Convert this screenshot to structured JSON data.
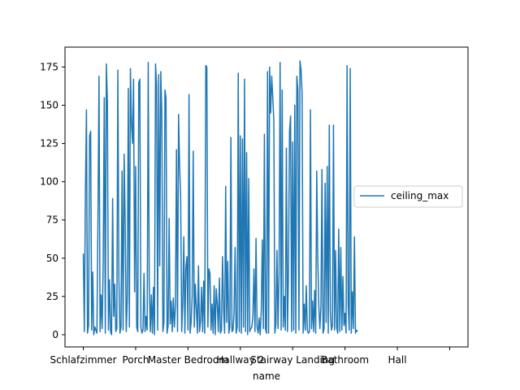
{
  "chart_data": {
    "type": "line",
    "xlabel": "name",
    "ylabel": "",
    "ylim": [
      -8,
      188
    ],
    "yticks": [
      0,
      25,
      50,
      75,
      100,
      125,
      150,
      175
    ],
    "xticks": [
      {
        "label": "Schlafzimmer",
        "pos": 0
      },
      {
        "label": "Porch",
        "pos": 50
      },
      {
        "label": "Master Bedroom",
        "pos": 100
      },
      {
        "label": "Hallway 2",
        "pos": 150
      },
      {
        "label": "Stairway Landing",
        "pos": 200
      },
      {
        "label": "Bathroom",
        "pos": 250
      },
      {
        "label": "Hall",
        "pos": 300
      },
      {
        "label": "",
        "pos": 350
      }
    ],
    "xlim": [
      -17.5,
      367.5
    ],
    "legend": {
      "location": "center right"
    },
    "series": [
      {
        "name": "ceiling_max",
        "color": "#1f77b4",
        "values": [
          53,
          2,
          93,
          147,
          1,
          6,
          130,
          133,
          3,
          41,
          0,
          5,
          3,
          1,
          77,
          169,
          2,
          26,
          4,
          48,
          155,
          1,
          177,
          152,
          3,
          36,
          2,
          0,
          89,
          12,
          33,
          2,
          4,
          173,
          36,
          1,
          5,
          107,
          3,
          118,
          72,
          2,
          23,
          161,
          5,
          174,
          138,
          125,
          167,
          28,
          110,
          5,
          2,
          165,
          167,
          5,
          1,
          3,
          40,
          2,
          12,
          3,
          178,
          33,
          2,
          26,
          1,
          31,
          0,
          177,
          163,
          3,
          170,
          45,
          172,
          145,
          2,
          8,
          160,
          155,
          1,
          6,
          76,
          7,
          22,
          2,
          24,
          5,
          19,
          121,
          2,
          144,
          110,
          90,
          2,
          21,
          64,
          1,
          44,
          51,
          3,
          157,
          1,
          8,
          25,
          120,
          5,
          33,
          17,
          1,
          45,
          2,
          9,
          31,
          2,
          35,
          1,
          176,
          175,
          5,
          43,
          40,
          3,
          20,
          1,
          32,
          0,
          30,
          20,
          2,
          37,
          1,
          3,
          51,
          17,
          1,
          97,
          8,
          48,
          1,
          5,
          129,
          2,
          3,
          14,
          57,
          1,
          5,
          171,
          2,
          130,
          1,
          128,
          5,
          167,
          2,
          119,
          0,
          102,
          2,
          4,
          5,
          12,
          43,
          2,
          63,
          5,
          1,
          11,
          0,
          16,
          62,
          4,
          131,
          4,
          1,
          172,
          1,
          175,
          145,
          169,
          155,
          140,
          1,
          7,
          55,
          4,
          40,
          178,
          3,
          160,
          5,
          25,
          3,
          122,
          2,
          41,
          133,
          143,
          2,
          126,
          3,
          150,
          1,
          169,
          160,
          3,
          179,
          173,
          158,
          1,
          20,
          3,
          32,
          3,
          1,
          2,
          147,
          4,
          22,
          2,
          29,
          1,
          107,
          50,
          18,
          4,
          18,
          108,
          1,
          4,
          99,
          8,
          110,
          1,
          137,
          15,
          3,
          6,
          137,
          3,
          55,
          5,
          1,
          69,
          2,
          57,
          3,
          38,
          6,
          14,
          1,
          176,
          20,
          3,
          174,
          1,
          28,
          4,
          64,
          1,
          3,
          2
        ]
      }
    ]
  }
}
